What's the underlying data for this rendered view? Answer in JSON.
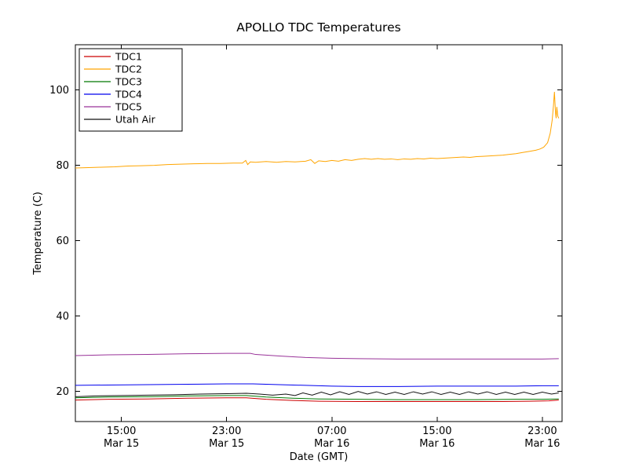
{
  "chart_data": {
    "type": "line",
    "title": "APOLLO TDC Temperatures",
    "xlabel": "Date (GMT)",
    "ylabel": "Temperature (C)",
    "x_unit": "hours since Mar 15 00:00 GMT",
    "xlim": [
      11.5,
      48.5
    ],
    "ylim": [
      12,
      112
    ],
    "grid": false,
    "legend_position": "upper-left",
    "x_ticks": [
      {
        "value": 15,
        "label": "15:00",
        "sublabel": "Mar 15"
      },
      {
        "value": 23,
        "label": "23:00",
        "sublabel": "Mar 15"
      },
      {
        "value": 31,
        "label": "07:00",
        "sublabel": "Mar 16"
      },
      {
        "value": 39,
        "label": "15:00",
        "sublabel": "Mar 16"
      },
      {
        "value": 47,
        "label": "23:00",
        "sublabel": "Mar 16"
      }
    ],
    "y_ticks": [
      20,
      40,
      60,
      80,
      100
    ],
    "series": [
      {
        "name": "TDC1",
        "color": "#cc0000",
        "points": [
          [
            11.5,
            17.7
          ],
          [
            14,
            17.9
          ],
          [
            17,
            18.0
          ],
          [
            20,
            18.2
          ],
          [
            23,
            18.3
          ],
          [
            24.5,
            18.3
          ],
          [
            26,
            17.9
          ],
          [
            28,
            17.6
          ],
          [
            30,
            17.4
          ],
          [
            33,
            17.3
          ],
          [
            36,
            17.3
          ],
          [
            39,
            17.3
          ],
          [
            42,
            17.3
          ],
          [
            44,
            17.3
          ],
          [
            46,
            17.4
          ],
          [
            47.5,
            17.5
          ],
          [
            48.25,
            17.7
          ]
        ]
      },
      {
        "name": "TDC2",
        "color": "#ffa500",
        "points": [
          [
            11.5,
            79.3
          ],
          [
            12.5,
            79.4
          ],
          [
            13.5,
            79.5
          ],
          [
            14.5,
            79.6
          ],
          [
            15.5,
            79.8
          ],
          [
            16.5,
            79.9
          ],
          [
            17.5,
            80.0
          ],
          [
            18.5,
            80.2
          ],
          [
            19.5,
            80.3
          ],
          [
            20.5,
            80.4
          ],
          [
            21.5,
            80.5
          ],
          [
            22.5,
            80.5
          ],
          [
            23.5,
            80.6
          ],
          [
            24.2,
            80.6
          ],
          [
            24.45,
            81.3
          ],
          [
            24.6,
            80.2
          ],
          [
            24.8,
            80.9
          ],
          [
            25.2,
            80.8
          ],
          [
            26,
            81.0
          ],
          [
            26.8,
            80.8
          ],
          [
            27.5,
            81.0
          ],
          [
            28.2,
            80.9
          ],
          [
            29.0,
            81.1
          ],
          [
            29.4,
            81.5
          ],
          [
            29.7,
            80.5
          ],
          [
            30.0,
            81.2
          ],
          [
            30.5,
            81.0
          ],
          [
            31,
            81.3
          ],
          [
            31.5,
            81.1
          ],
          [
            32,
            81.5
          ],
          [
            32.5,
            81.3
          ],
          [
            33,
            81.6
          ],
          [
            33.5,
            81.8
          ],
          [
            34,
            81.6
          ],
          [
            34.5,
            81.8
          ],
          [
            35,
            81.6
          ],
          [
            35.5,
            81.7
          ],
          [
            36,
            81.5
          ],
          [
            36.5,
            81.7
          ],
          [
            37,
            81.6
          ],
          [
            37.5,
            81.8
          ],
          [
            38,
            81.7
          ],
          [
            38.5,
            81.9
          ],
          [
            39,
            81.8
          ],
          [
            39.5,
            81.9
          ],
          [
            40,
            82.0
          ],
          [
            40.5,
            82.1
          ],
          [
            41,
            82.2
          ],
          [
            41.5,
            82.1
          ],
          [
            42,
            82.3
          ],
          [
            42.5,
            82.4
          ],
          [
            43,
            82.5
          ],
          [
            43.5,
            82.6
          ],
          [
            44,
            82.7
          ],
          [
            44.5,
            82.9
          ],
          [
            45,
            83.1
          ],
          [
            45.5,
            83.4
          ],
          [
            46,
            83.7
          ],
          [
            46.5,
            84.0
          ],
          [
            46.8,
            84.3
          ],
          [
            47.1,
            84.8
          ],
          [
            47.4,
            86.0
          ],
          [
            47.6,
            88.5
          ],
          [
            47.75,
            92.0
          ],
          [
            47.85,
            96.0
          ],
          [
            47.92,
            99.5
          ],
          [
            48.0,
            94.0
          ],
          [
            48.05,
            92.5
          ],
          [
            48.1,
            95.5
          ],
          [
            48.18,
            93.0
          ],
          [
            48.25,
            92.5
          ]
        ]
      },
      {
        "name": "TDC3",
        "color": "#007700",
        "points": [
          [
            11.5,
            18.3
          ],
          [
            14,
            18.5
          ],
          [
            17,
            18.6
          ],
          [
            20,
            18.8
          ],
          [
            23,
            18.9
          ],
          [
            24.5,
            18.9
          ],
          [
            26,
            18.5
          ],
          [
            28,
            18.2
          ],
          [
            30,
            18.0
          ],
          [
            33,
            17.9
          ],
          [
            36,
            17.8
          ],
          [
            39,
            17.8
          ],
          [
            42,
            17.8
          ],
          [
            45,
            17.9
          ],
          [
            47,
            17.9
          ],
          [
            48.25,
            18.0
          ]
        ]
      },
      {
        "name": "TDC4",
        "color": "#0000ee",
        "points": [
          [
            11.5,
            21.6
          ],
          [
            14,
            21.7
          ],
          [
            17,
            21.8
          ],
          [
            20,
            21.9
          ],
          [
            23,
            22.0
          ],
          [
            25,
            22.0
          ],
          [
            27,
            21.8
          ],
          [
            29,
            21.6
          ],
          [
            31,
            21.4
          ],
          [
            33,
            21.3
          ],
          [
            36,
            21.3
          ],
          [
            39,
            21.4
          ],
          [
            42,
            21.4
          ],
          [
            45,
            21.4
          ],
          [
            47,
            21.5
          ],
          [
            48.25,
            21.5
          ]
        ]
      },
      {
        "name": "TDC5",
        "color": "#993399",
        "points": [
          [
            11.5,
            29.5
          ],
          [
            14,
            29.7
          ],
          [
            17,
            29.8
          ],
          [
            20,
            30.0
          ],
          [
            23,
            30.1
          ],
          [
            24.8,
            30.1
          ],
          [
            25.2,
            29.8
          ],
          [
            27,
            29.4
          ],
          [
            29,
            29.0
          ],
          [
            31,
            28.8
          ],
          [
            33,
            28.7
          ],
          [
            36,
            28.6
          ],
          [
            39,
            28.6
          ],
          [
            42,
            28.6
          ],
          [
            45,
            28.6
          ],
          [
            47,
            28.6
          ],
          [
            48.25,
            28.7
          ]
        ]
      },
      {
        "name": "Utah Air",
        "color": "#111111",
        "points": [
          [
            11.5,
            18.6
          ],
          [
            13,
            18.8
          ],
          [
            15,
            18.9
          ],
          [
            17,
            19.0
          ],
          [
            19,
            19.1
          ],
          [
            21,
            19.3
          ],
          [
            23,
            19.4
          ],
          [
            24.5,
            19.5
          ],
          [
            25.5,
            19.3
          ],
          [
            26.5,
            19.0
          ],
          [
            27.5,
            19.3
          ],
          [
            28.2,
            18.9
          ],
          [
            28.8,
            19.6
          ],
          [
            29.5,
            19.0
          ],
          [
            30.2,
            19.8
          ],
          [
            30.9,
            19.1
          ],
          [
            31.6,
            19.9
          ],
          [
            32.3,
            19.2
          ],
          [
            33.0,
            20.0
          ],
          [
            33.7,
            19.3
          ],
          [
            34.4,
            19.9
          ],
          [
            35.1,
            19.2
          ],
          [
            35.8,
            19.8
          ],
          [
            36.5,
            19.2
          ],
          [
            37.2,
            19.9
          ],
          [
            37.9,
            19.3
          ],
          [
            38.6,
            19.9
          ],
          [
            39.3,
            19.2
          ],
          [
            40.0,
            19.8
          ],
          [
            40.7,
            19.2
          ],
          [
            41.4,
            19.9
          ],
          [
            42.1,
            19.3
          ],
          [
            42.8,
            19.9
          ],
          [
            43.5,
            19.2
          ],
          [
            44.2,
            19.8
          ],
          [
            44.9,
            19.2
          ],
          [
            45.6,
            19.8
          ],
          [
            46.3,
            19.2
          ],
          [
            47.0,
            19.8
          ],
          [
            47.7,
            19.3
          ],
          [
            48.25,
            19.6
          ]
        ]
      }
    ]
  }
}
